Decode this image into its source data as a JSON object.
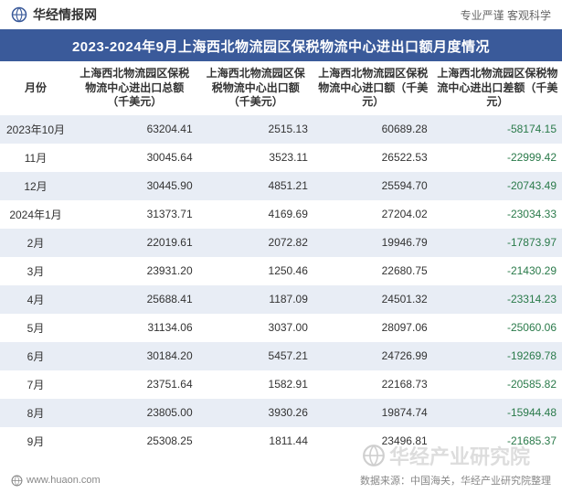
{
  "header": {
    "brand": "华经情报网",
    "tagline": "专业严谨    客观科学"
  },
  "title": "2023-2024年9月上海西北物流园区保税物流中心进出口额月度情况",
  "table": {
    "columns": [
      "月份",
      "上海西北物流园区保税物流中心进出口总额（千美元）",
      "上海西北物流园区保税物流中心出口额（千美元）",
      "上海西北物流园区保税物流中心进口额（千美元）",
      "上海西北物流园区保税物流中心进出口差额（千美元）"
    ],
    "rows": [
      {
        "month": "2023年10月",
        "total": "63204.41",
        "export": "2515.13",
        "import": "60689.28",
        "diff": "-58174.15"
      },
      {
        "month": "11月",
        "total": "30045.64",
        "export": "3523.11",
        "import": "26522.53",
        "diff": "-22999.42"
      },
      {
        "month": "12月",
        "total": "30445.90",
        "export": "4851.21",
        "import": "25594.70",
        "diff": "-20743.49"
      },
      {
        "month": "2024年1月",
        "total": "31373.71",
        "export": "4169.69",
        "import": "27204.02",
        "diff": "-23034.33"
      },
      {
        "month": "2月",
        "total": "22019.61",
        "export": "2072.82",
        "import": "19946.79",
        "diff": "-17873.97"
      },
      {
        "month": "3月",
        "total": "23931.20",
        "export": "1250.46",
        "import": "22680.75",
        "diff": "-21430.29"
      },
      {
        "month": "4月",
        "total": "25688.41",
        "export": "1187.09",
        "import": "24501.32",
        "diff": "-23314.23"
      },
      {
        "month": "5月",
        "total": "31134.06",
        "export": "3037.00",
        "import": "28097.06",
        "diff": "-25060.06"
      },
      {
        "month": "6月",
        "total": "30184.20",
        "export": "5457.21",
        "import": "24726.99",
        "diff": "-19269.78"
      },
      {
        "month": "7月",
        "total": "23751.64",
        "export": "1582.91",
        "import": "22168.73",
        "diff": "-20585.82"
      },
      {
        "month": "8月",
        "total": "23805.00",
        "export": "3930.26",
        "import": "19874.74",
        "diff": "-15944.48"
      },
      {
        "month": "9月",
        "total": "25308.25",
        "export": "1811.44",
        "import": "23496.81",
        "diff": "-21685.37"
      }
    ]
  },
  "footer": {
    "url": "www.huaon.com",
    "source": "数据来源：中国海关，华经产业研究院整理"
  },
  "watermark": "华经产业研究院",
  "colors": {
    "header_bg": "#3a5a9a",
    "row_odd": "#e8edf5",
    "row_even": "#ffffff",
    "negative": "#2a7a4a",
    "text": "#333333",
    "muted": "#888888"
  }
}
